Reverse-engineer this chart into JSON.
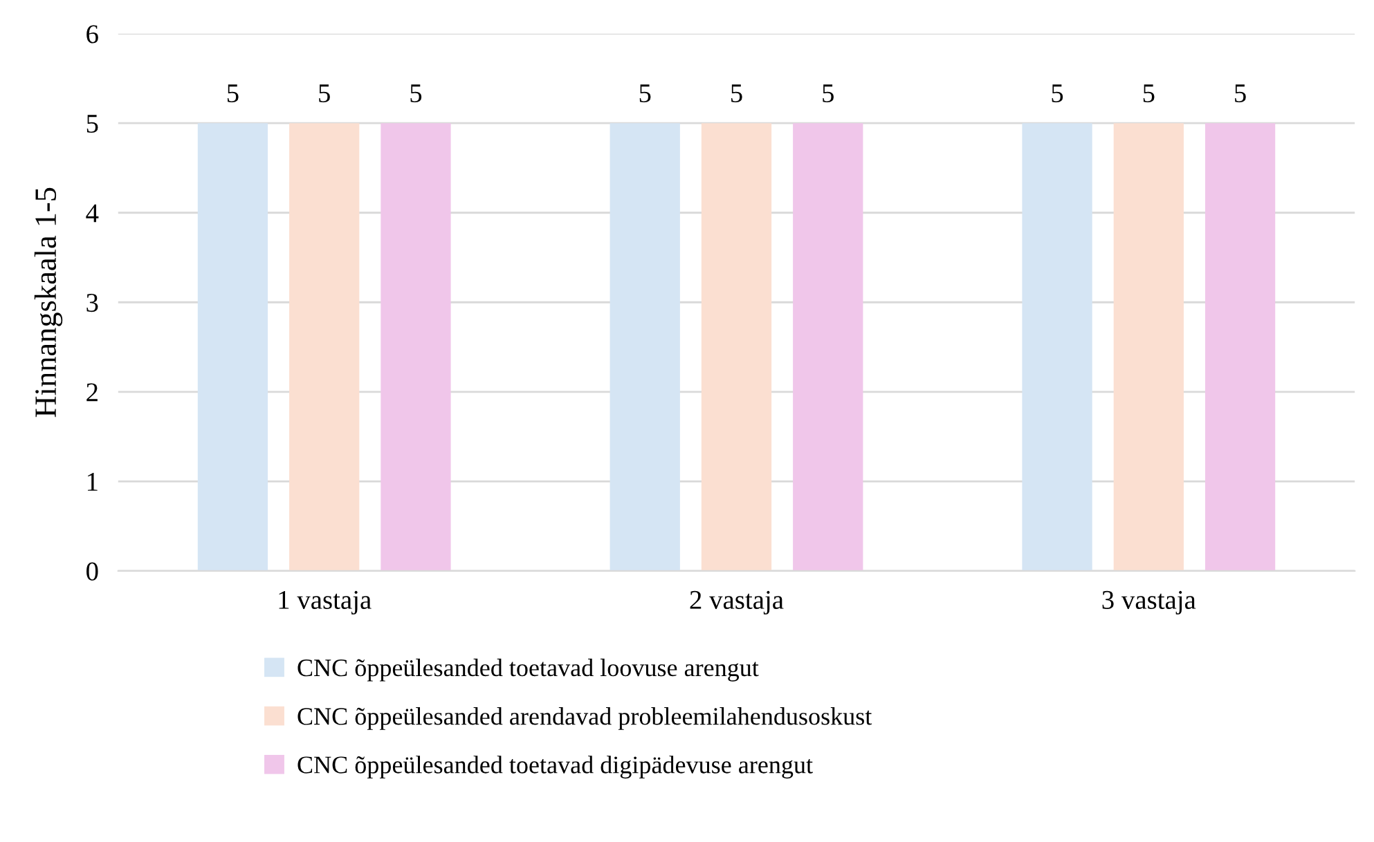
{
  "chart_data": {
    "type": "bar",
    "ylabel": "Hinnangskaala 1-5",
    "categories": [
      "1 vastaja",
      "2 vastaja",
      "3 vastaja"
    ],
    "series": [
      {
        "name": "CNC õppeülesanded toetavad loovuse arengut",
        "color": "#d5e5f4",
        "values": [
          5,
          5,
          5
        ]
      },
      {
        "name": "CNC õppeülesanded arendavad probleemilahendusoskust",
        "color": "#fbdfd1",
        "values": [
          5,
          5,
          5
        ]
      },
      {
        "name": "CNC õppeülesanded toetavad digipädevuse arengut",
        "color": "#f0c6ea",
        "values": [
          5,
          5,
          5
        ]
      }
    ],
    "ylim": [
      0,
      6
    ],
    "yticks": [
      0,
      1,
      2,
      3,
      4,
      5,
      6
    ],
    "grid": "y",
    "legend": "bottom",
    "data_labels": true
  }
}
